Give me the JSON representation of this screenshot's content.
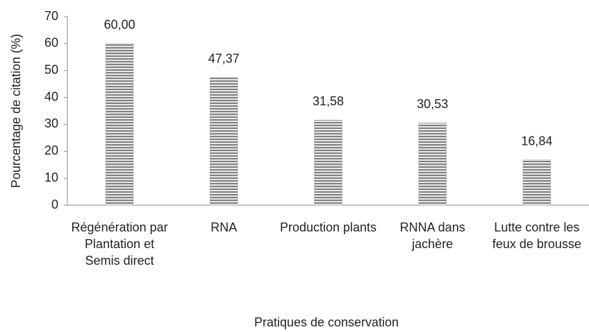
{
  "chart_data": {
    "type": "bar",
    "categories": [
      "Régénération par Plantation et Semis direct",
      "RNA",
      "Production plants",
      "RNNA dans jachère",
      "Lutte contre les feux de brousse"
    ],
    "values": [
      60,
      47.37,
      31.58,
      30.53,
      16.84
    ],
    "value_labels": [
      "60,00",
      "47,37",
      "31,58",
      "30,53",
      "16,84"
    ],
    "color": "#808080",
    "ylim": [
      0,
      70
    ],
    "yticks": [
      0,
      10,
      20,
      30,
      40,
      50,
      60,
      70
    ],
    "xlabel": "Pratiques de conservation",
    "ylabel": "Pourcentage de citation (%)",
    "grid": false
  }
}
